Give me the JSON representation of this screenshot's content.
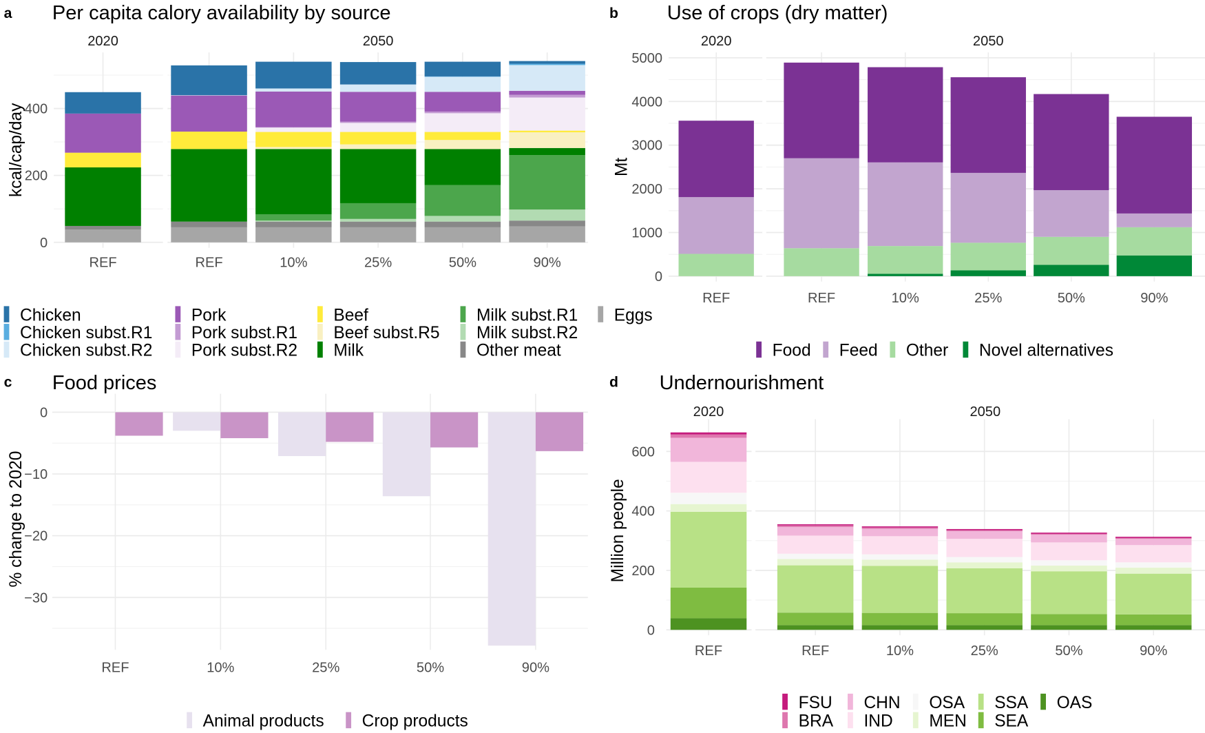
{
  "chart_data": [
    {
      "panel_label": "a",
      "type": "bar",
      "stacked": true,
      "title": "Per capita calory availability by source",
      "ylabel": "kcal/cap/day",
      "xlabel": "",
      "ylim": [
        0,
        560
      ],
      "yticks": [
        0,
        200,
        400
      ],
      "facets": [
        "2020",
        "2050"
      ],
      "categories": [
        "REF",
        "REF",
        "10%",
        "25%",
        "50%",
        "90%"
      ],
      "category_facet": [
        "2020",
        "2050",
        "2050",
        "2050",
        "2050",
        "2050"
      ],
      "legend_position": "bottom",
      "grid": true,
      "series": [
        {
          "name": "Chicken",
          "color": "#2a73a8",
          "values": [
            64,
            89,
            80,
            67,
            44,
            8
          ]
        },
        {
          "name": "Chicken subst.R1",
          "color": "#5aaee0",
          "values": [
            0,
            0,
            0,
            0,
            1,
            4
          ]
        },
        {
          "name": "Chicken subst.R2",
          "color": "#d6e9f7",
          "values": [
            0,
            1,
            9,
            22,
            45,
            77
          ]
        },
        {
          "name": "Pork",
          "color": "#9b59b6",
          "values": [
            117,
            108,
            107,
            89,
            59,
            12
          ]
        },
        {
          "name": "Pork subst.R1",
          "color": "#c39bd3",
          "values": [
            0,
            0,
            1,
            4,
            5,
            8
          ]
        },
        {
          "name": "Pork subst.R2",
          "color": "#f4ecf7",
          "values": [
            0,
            0,
            13,
            27,
            56,
            99
          ]
        },
        {
          "name": "Beef",
          "color": "#ffeb3b",
          "values": [
            44,
            52,
            45,
            37,
            24,
            5
          ]
        },
        {
          "name": "Beef subst.R5",
          "color": "#f9f0c1",
          "values": [
            0,
            0,
            6,
            14,
            27,
            47
          ]
        },
        {
          "name": "Milk",
          "color": "#008000",
          "values": [
            175,
            217,
            195,
            162,
            108,
            21
          ]
        },
        {
          "name": "Milk subst.R1",
          "color": "#4ca64c",
          "values": [
            0,
            0,
            19,
            47,
            92,
            163
          ]
        },
        {
          "name": "Milk subst.R2",
          "color": "#b2dbb2",
          "values": [
            0,
            0,
            3,
            8,
            17,
            33
          ]
        },
        {
          "name": "Other meat",
          "color": "#888888",
          "values": [
            11,
            17,
            17,
            17,
            17,
            17
          ]
        },
        {
          "name": "Eggs",
          "color": "#a6a6a6",
          "values": [
            38,
            45,
            45,
            45,
            45,
            48
          ]
        }
      ]
    },
    {
      "panel_label": "b",
      "type": "bar",
      "stacked": true,
      "title": "Use of crops (dry matter)",
      "ylabel": "Mt",
      "xlabel": "",
      "ylim": [
        0,
        5000
      ],
      "yticks": [
        0,
        1000,
        2000,
        3000,
        4000,
        5000
      ],
      "facets": [
        "2020",
        "2050"
      ],
      "categories": [
        "REF",
        "REF",
        "10%",
        "25%",
        "50%",
        "90%"
      ],
      "category_facet": [
        "2020",
        "2050",
        "2050",
        "2050",
        "2050",
        "2050"
      ],
      "legend_position": "bottom",
      "grid": true,
      "series": [
        {
          "name": "Food",
          "color": "#7b3294",
          "values": [
            1750,
            2190,
            2180,
            2190,
            2200,
            2215
          ]
        },
        {
          "name": "Feed",
          "color": "#c2a5cf",
          "values": [
            1300,
            2060,
            1915,
            1600,
            1070,
            315
          ]
        },
        {
          "name": "Other",
          "color": "#a6dba0",
          "values": [
            510,
            640,
            635,
            630,
            640,
            645
          ]
        },
        {
          "name": "Novel alternatives",
          "color": "#008837",
          "values": [
            0,
            0,
            55,
            135,
            260,
            475
          ]
        }
      ]
    },
    {
      "panel_label": "c",
      "type": "bar",
      "stacked": false,
      "title": "Food prices",
      "ylabel": "% change to 2020",
      "xlabel": "",
      "ylim": [
        -38.6,
        1
      ],
      "yticks": [
        0,
        -10,
        -20,
        -30
      ],
      "categories": [
        "REF",
        "10%",
        "25%",
        "50%",
        "90%"
      ],
      "legend_position": "bottom",
      "grid": true,
      "series": [
        {
          "name": "Animal products",
          "color": "#e7e1ef",
          "values": [
            0,
            -3.0,
            -7.1,
            -13.6,
            -37.8
          ]
        },
        {
          "name": "Crop products",
          "color": "#c994c7",
          "values": [
            -3.8,
            -4.2,
            -4.8,
            -5.7,
            -6.3
          ]
        }
      ]
    },
    {
      "panel_label": "d",
      "type": "bar",
      "stacked": true,
      "title": "Undernourishment",
      "ylabel": "Million people",
      "xlabel": "",
      "ylim": [
        0,
        700
      ],
      "yticks": [
        0,
        200,
        400,
        600
      ],
      "facets": [
        "2020",
        "2050"
      ],
      "categories": [
        "REF",
        "REF",
        "10%",
        "25%",
        "50%",
        "90%"
      ],
      "category_facet": [
        "2020",
        "2050",
        "2050",
        "2050",
        "2050",
        "2050"
      ],
      "legend_position": "bottom",
      "grid": true,
      "series": [
        {
          "name": "FSU",
          "color": "#c51b7d",
          "values": [
            7,
            4,
            4,
            4,
            4,
            4
          ]
        },
        {
          "name": "BRA",
          "color": "#de77ae",
          "values": [
            11,
            5,
            4,
            3,
            3,
            3
          ]
        },
        {
          "name": "CHN",
          "color": "#f1b6da",
          "values": [
            81,
            29,
            25,
            26,
            26,
            21
          ]
        },
        {
          "name": "IND",
          "color": "#fde0ef",
          "values": [
            104,
            61,
            61,
            61,
            60,
            58
          ]
        },
        {
          "name": "OSA",
          "color": "#f7f7f7",
          "values": [
            38,
            18,
            18,
            18,
            18,
            18
          ]
        },
        {
          "name": "MEN",
          "color": "#e6f5d0",
          "values": [
            26,
            21,
            21,
            20,
            19,
            20
          ]
        },
        {
          "name": "SSA",
          "color": "#b8e186",
          "values": [
            255,
            159,
            158,
            151,
            144,
            137
          ]
        },
        {
          "name": "SEA",
          "color": "#7fbc41",
          "values": [
            103,
            42,
            41,
            40,
            37,
            36
          ]
        },
        {
          "name": "OAS",
          "color": "#4d9221",
          "values": [
            39,
            16,
            16,
            16,
            16,
            16
          ]
        }
      ]
    }
  ]
}
